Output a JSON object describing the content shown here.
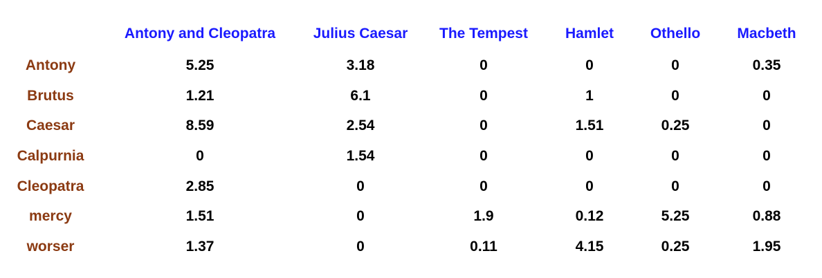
{
  "table": {
    "columns": [
      "Antony and Cleopatra",
      "Julius Caesar",
      "The Tempest",
      "Hamlet",
      "Othello",
      "Macbeth"
    ],
    "rows": [
      {
        "term": "Antony",
        "values": [
          "5.25",
          "3.18",
          "0",
          "0",
          "0",
          "0.35"
        ]
      },
      {
        "term": "Brutus",
        "values": [
          "1.21",
          "6.1",
          "0",
          "1",
          "0",
          "0"
        ]
      },
      {
        "term": "Caesar",
        "values": [
          "8.59",
          "2.54",
          "0",
          "1.51",
          "0.25",
          "0"
        ]
      },
      {
        "term": "Calpurnia",
        "values": [
          "0",
          "1.54",
          "0",
          "0",
          "0",
          "0"
        ]
      },
      {
        "term": "Cleopatra",
        "values": [
          "2.85",
          "0",
          "0",
          "0",
          "0",
          "0"
        ]
      },
      {
        "term": "mercy",
        "values": [
          "1.51",
          "0",
          "1.9",
          "0.12",
          "5.25",
          "0.88"
        ]
      },
      {
        "term": "worser",
        "values": [
          "1.37",
          "0",
          "0.11",
          "4.15",
          "0.25",
          "1.95"
        ]
      }
    ]
  },
  "colors": {
    "column_header": "#1a1aff",
    "row_label": "#8b3a12",
    "cell": "#000000"
  }
}
